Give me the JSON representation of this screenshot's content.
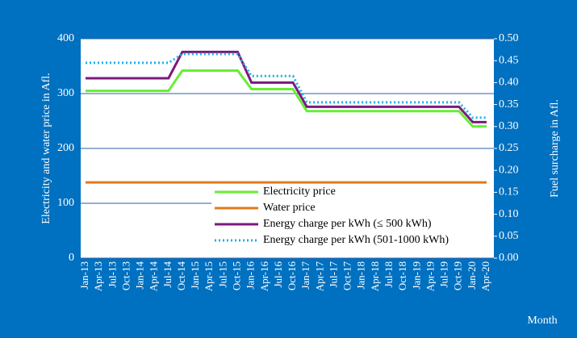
{
  "chart_data": {
    "type": "line",
    "ylabel": "Electricity and water price in Afl.",
    "y2label": "Fuel surcharge in Afl.",
    "xlabel": "Month",
    "categories": [
      "Jan-13",
      "Apr-13",
      "Jul-13",
      "Oct-13",
      "Jan-14",
      "Apr-14",
      "Jul-14",
      "Oct-14",
      "Jan-15",
      "Apr-15",
      "Jul-15",
      "Oct-15",
      "Jan-16",
      "Apr-16",
      "Jul-16",
      "Oct-16",
      "Jan-17",
      "Apr-17",
      "Jul-17",
      "Oct-17",
      "Jan-18",
      "Apr-18",
      "Jul-18",
      "Oct-18",
      "Jan-19",
      "Apr-19",
      "Jul-19",
      "Oct-19",
      "Jan-20",
      "Apr-20"
    ],
    "series": [
      {
        "name": "Electricity price",
        "color": "#66ee33",
        "style": "solid",
        "values": [
          305,
          305,
          305,
          305,
          305,
          305,
          305,
          342,
          342,
          342,
          342,
          342,
          308,
          308,
          308,
          308,
          268,
          268,
          268,
          268,
          268,
          268,
          268,
          268,
          268,
          268,
          268,
          268,
          240,
          240
        ]
      },
      {
        "name": "Water price",
        "color": "#e07a1f",
        "style": "solid",
        "values": [
          138,
          138,
          138,
          138,
          138,
          138,
          138,
          138,
          138,
          138,
          138,
          138,
          138,
          138,
          138,
          138,
          138,
          138,
          138,
          138,
          138,
          138,
          138,
          138,
          138,
          138,
          138,
          138,
          138,
          138
        ]
      },
      {
        "name": "Energy charge per kWh (≤ 500 kWh)",
        "color": "#7b1a7b",
        "style": "solid",
        "axis": "y2",
        "values": [
          0.41,
          0.41,
          0.41,
          0.41,
          0.41,
          0.41,
          0.41,
          0.47,
          0.47,
          0.47,
          0.47,
          0.47,
          0.4,
          0.4,
          0.4,
          0.4,
          0.345,
          0.345,
          0.345,
          0.345,
          0.345,
          0.345,
          0.345,
          0.345,
          0.345,
          0.345,
          0.345,
          0.345,
          0.31,
          0.31
        ]
      },
      {
        "name": "Energy charge per kWh (501-1000 kWh)",
        "color": "#1fb0e6",
        "style": "dotted",
        "axis": "y2",
        "values": [
          0.445,
          0.445,
          0.445,
          0.445,
          0.445,
          0.445,
          0.445,
          0.465,
          0.465,
          0.465,
          0.465,
          0.465,
          0.415,
          0.415,
          0.415,
          0.415,
          0.355,
          0.355,
          0.355,
          0.355,
          0.355,
          0.355,
          0.355,
          0.355,
          0.355,
          0.355,
          0.355,
          0.355,
          0.32,
          0.32
        ]
      }
    ],
    "ylim": [
      0,
      400
    ],
    "yticks": [
      0,
      100,
      200,
      300,
      400
    ],
    "y2lim": [
      0,
      0.5
    ],
    "y2ticks": [
      {
        "value": 0,
        "label": "0.00"
      },
      {
        "value": 0.05,
        "label": "0.05"
      },
      {
        "value": 0.1,
        "label": "0.10"
      },
      {
        "value": 0.15,
        "label": "0.15"
      },
      {
        "value": 0.2,
        "label": "0.20"
      },
      {
        "value": 0.25,
        "label": "0.25"
      },
      {
        "value": 0.3,
        "label": "0.30"
      },
      {
        "value": 0.35,
        "label": "0.35"
      },
      {
        "value": 0.4,
        "label": "0.40"
      },
      {
        "value": 0.45,
        "label": "0.45"
      },
      {
        "value": 0.5,
        "label": "0.50"
      }
    ],
    "grid": true,
    "grid_color": "#2e5fa8",
    "legend": "lower right"
  }
}
